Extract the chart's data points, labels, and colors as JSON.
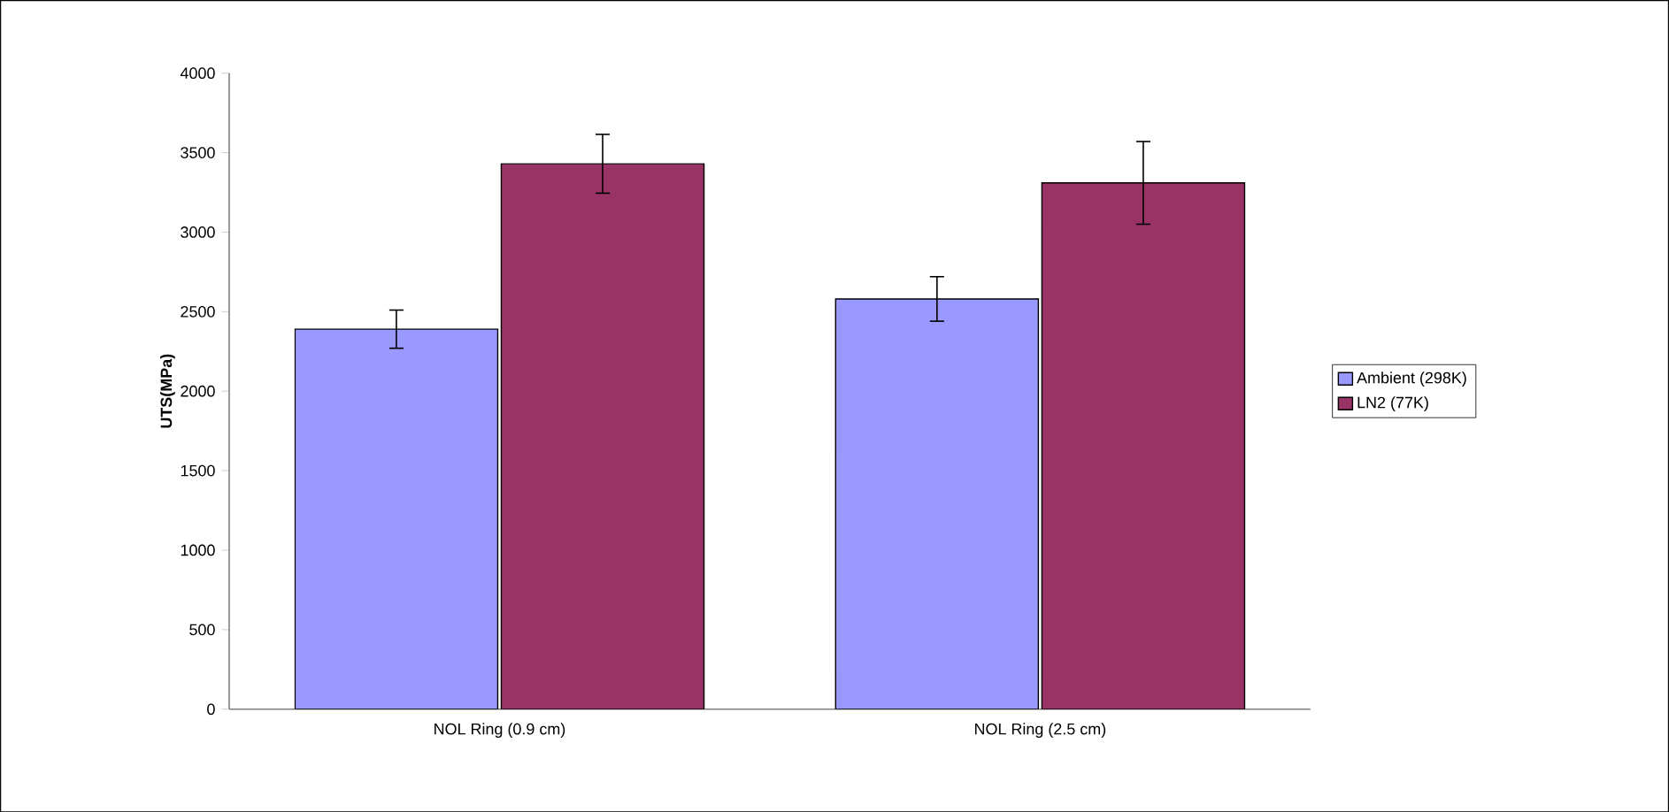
{
  "chart_data": {
    "type": "bar",
    "ylabel": "UTS(MPa)",
    "categories": [
      "NOL Ring (0.9 cm)",
      "NOL Ring (2.5 cm)"
    ],
    "series": [
      {
        "name": "Ambient (298K)",
        "color": "#9999ff",
        "values": [
          2390,
          2580
        ],
        "errors": [
          120,
          140
        ]
      },
      {
        "name": "LN2 (77K)",
        "color": "#993366",
        "values": [
          3430,
          3310
        ],
        "errors": [
          185,
          260
        ]
      }
    ],
    "ylim": [
      0,
      4000
    ],
    "yticks": [
      0,
      500,
      1000,
      1500,
      2000,
      2500,
      3000,
      3500,
      4000
    ],
    "legend": "right",
    "grid": false
  }
}
